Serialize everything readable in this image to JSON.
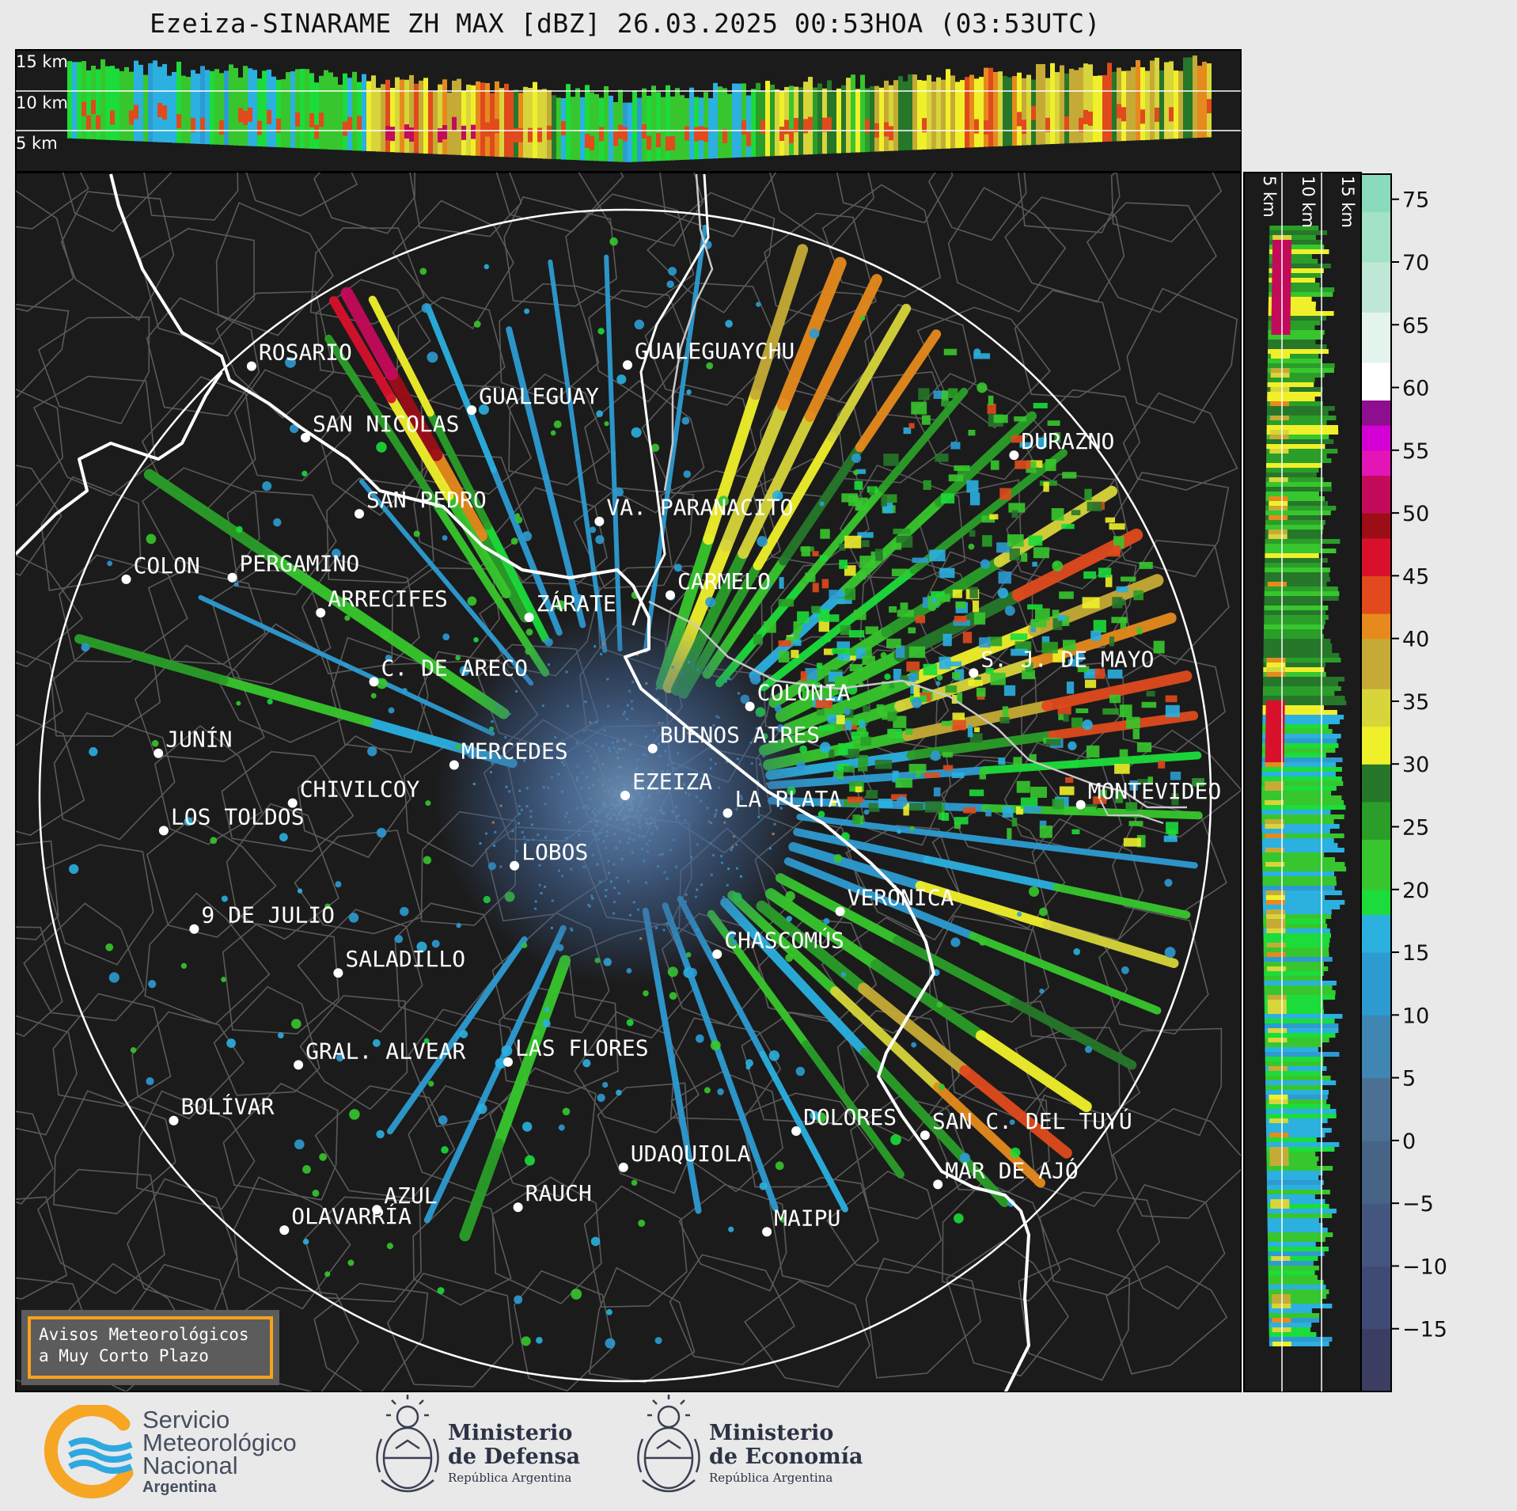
{
  "title": "Ezeiza-SINARAME ZH MAX [dBZ] 26.03.2025 00:53HOA (03:53UTC)",
  "top_panel": {
    "height_labels": [
      "15 km",
      "10 km",
      "5 km"
    ]
  },
  "side_panel": {
    "height_labels": [
      "5 km",
      "10 km",
      "15 km"
    ]
  },
  "colorbar": {
    "ticks": [
      "75",
      "70",
      "65",
      "60",
      "55",
      "50",
      "45",
      "40",
      "35",
      "30",
      "25",
      "20",
      "15",
      "10",
      "5",
      "0",
      "−5",
      "−10",
      "−15"
    ],
    "stops": [
      {
        "v": -20,
        "c": "#3b3d63"
      },
      {
        "v": -15,
        "c": "#3f4a75"
      },
      {
        "v": -10,
        "c": "#43567f"
      },
      {
        "v": -5,
        "c": "#476487"
      },
      {
        "v": 0,
        "c": "#4b7093"
      },
      {
        "v": 5,
        "c": "#3f86b3"
      },
      {
        "v": 10,
        "c": "#2d9bd1"
      },
      {
        "v": 15,
        "c": "#2bb0e0"
      },
      {
        "v": 18,
        "c": "#1bdc3a"
      },
      {
        "v": 20,
        "c": "#37c62d"
      },
      {
        "v": 24,
        "c": "#2a9e28"
      },
      {
        "v": 27,
        "c": "#26772a"
      },
      {
        "v": 30,
        "c": "#f0f02a"
      },
      {
        "v": 33,
        "c": "#d7d53a"
      },
      {
        "v": 36,
        "c": "#c5ab35"
      },
      {
        "v": 40,
        "c": "#e68a1d"
      },
      {
        "v": 42,
        "c": "#e04a1d"
      },
      {
        "v": 45,
        "c": "#d8102c"
      },
      {
        "v": 48,
        "c": "#9c0e17"
      },
      {
        "v": 50,
        "c": "#c40a5a"
      },
      {
        "v": 53,
        "c": "#e415b7"
      },
      {
        "v": 55,
        "c": "#d400d4"
      },
      {
        "v": 57,
        "c": "#8d0f8f"
      },
      {
        "v": 59,
        "c": "#ffffff"
      },
      {
        "v": 62,
        "c": "#e4f4ec"
      },
      {
        "v": 66,
        "c": "#bfe9d6"
      },
      {
        "v": 70,
        "c": "#a4e2c8"
      },
      {
        "v": 74,
        "c": "#89dbbb"
      },
      {
        "v": 77,
        "c": "#7dd6b4"
      }
    ]
  },
  "cities": [
    {
      "name": "ROSARIO",
      "dx": -0.638,
      "dy": 0.733
    },
    {
      "name": "GUALEGUAYCHU",
      "dx": 0.004,
      "dy": 0.735
    },
    {
      "name": "GUALEGUAY",
      "dx": -0.262,
      "dy": 0.658
    },
    {
      "name": "SAN NICOLAS",
      "dx": -0.546,
      "dy": 0.611
    },
    {
      "name": "DURAZNO",
      "dx": 0.664,
      "dy": 0.581
    },
    {
      "name": "SAN PEDRO",
      "dx": -0.454,
      "dy": 0.481
    },
    {
      "name": "VA. PARANACITO",
      "dx": -0.044,
      "dy": 0.468
    },
    {
      "name": "COLON",
      "dx": -0.852,
      "dy": 0.369
    },
    {
      "name": "PERGAMINO",
      "dx": -0.671,
      "dy": 0.372
    },
    {
      "name": "CARMELO",
      "dx": 0.077,
      "dy": 0.342
    },
    {
      "name": "ARRECIFES",
      "dx": -0.52,
      "dy": 0.312
    },
    {
      "name": "ZÁRATE",
      "dx": -0.164,
      "dy": 0.304
    },
    {
      "name": "C. DE ARECO",
      "dx": -0.429,
      "dy": 0.194
    },
    {
      "name": "S. J. DE MAYO",
      "dx": 0.595,
      "dy": 0.209
    },
    {
      "name": "COLONIA",
      "dx": 0.213,
      "dy": 0.152
    },
    {
      "name": "BUENOS AIRES",
      "dx": 0.047,
      "dy": 0.08
    },
    {
      "name": "JUNÍN",
      "dx": -0.797,
      "dy": 0.072
    },
    {
      "name": "MERCEDES",
      "dx": -0.292,
      "dy": 0.052
    },
    {
      "name": "EZEIZA",
      "dx": 0.0,
      "dy": 0.0
    },
    {
      "name": "MONTEVIDEO",
      "dx": 0.778,
      "dy": -0.016
    },
    {
      "name": "LA PLATA",
      "dx": 0.175,
      "dy": -0.03
    },
    {
      "name": "CHIVILCOY",
      "dx": -0.568,
      "dy": -0.013
    },
    {
      "name": "LOS TOLDOS",
      "dx": -0.788,
      "dy": -0.06
    },
    {
      "name": "LOBOS",
      "dx": -0.189,
      "dy": -0.12
    },
    {
      "name": "VERÓNICA",
      "dx": 0.367,
      "dy": -0.198
    },
    {
      "name": "9 DE JULIO",
      "dx": -0.736,
      "dy": -0.228
    },
    {
      "name": "CHASCOMÚS",
      "dx": 0.157,
      "dy": -0.271
    },
    {
      "name": "SALADILLO",
      "dx": -0.49,
      "dy": -0.303
    },
    {
      "name": "GRAL. ALVEAR",
      "dx": -0.558,
      "dy": -0.46
    },
    {
      "name": "LAS FLORES",
      "dx": -0.2,
      "dy": -0.455
    },
    {
      "name": "BOLÍVAR",
      "dx": -0.771,
      "dy": -0.555
    },
    {
      "name": "DOLORES",
      "dx": 0.292,
      "dy": -0.573
    },
    {
      "name": "SAN C. DEL TUYÚ",
      "dx": 0.512,
      "dy": -0.58
    },
    {
      "name": "UDAQUIOLA",
      "dx": -0.003,
      "dy": -0.635
    },
    {
      "name": "MAR DE AJÓ",
      "dx": 0.534,
      "dy": -0.664
    },
    {
      "name": "AZUL",
      "dx": -0.424,
      "dy": -0.707
    },
    {
      "name": "RAUCH",
      "dx": -0.183,
      "dy": -0.703
    },
    {
      "name": "OLAVARRÍA",
      "dx": -0.582,
      "dy": -0.742
    },
    {
      "name": "MAIPU",
      "dx": 0.242,
      "dy": -0.745
    }
  ],
  "avisos": {
    "line1": "Avisos Meteorológicos",
    "line2": "a Muy Corto Plazo"
  },
  "logos": {
    "smn": {
      "line1": "Servicio",
      "line2": "Meteorológico",
      "line3": "Nacional",
      "line4": "Argentina"
    },
    "defensa": {
      "line1": "Ministerio",
      "line2": "de Defensa",
      "line3": "República Argentina"
    },
    "economia": {
      "line1": "Ministerio",
      "line2": "de Economía",
      "line3": "República Argentina"
    }
  }
}
